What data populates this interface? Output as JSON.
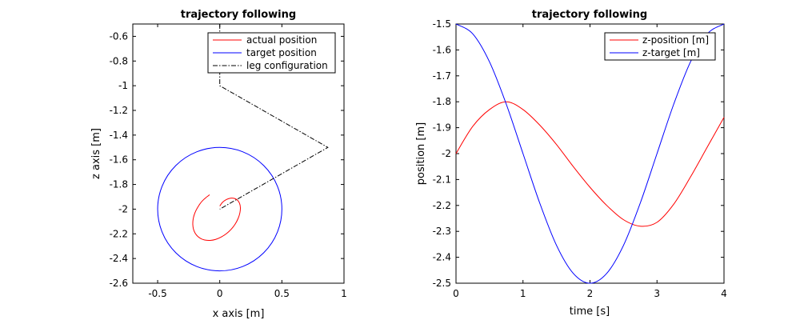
{
  "chart_data": [
    {
      "type": "line",
      "title": "trajectory following",
      "xlabel": "x axis [m]",
      "ylabel": "z axis [m]",
      "xlim": [
        -0.7,
        1
      ],
      "ylim": [
        -2.6,
        -0.5
      ],
      "xticks": [
        "-0.5",
        "0",
        "0.5",
        "1"
      ],
      "yticks": [
        "-0.6",
        "-0.8",
        "-1",
        "-1.2",
        "-1.4",
        "-1.6",
        "-1.8",
        "-2",
        "-2.2",
        "-2.4",
        "-2.6"
      ],
      "legend_position": "top-right",
      "series": [
        {
          "name": "actual position",
          "color": "#ff0000",
          "style": "solid",
          "x": [
            0,
            0.023,
            0.053,
            0.086,
            0.117,
            0.142,
            0.159,
            0.166,
            0.162,
            0.148,
            0.124,
            0.092,
            0.053,
            0.011,
            -0.033,
            -0.076,
            -0.116,
            -0.15,
            -0.178,
            -0.199,
            -0.212,
            -0.217,
            -0.215,
            -0.206,
            -0.191,
            -0.172,
            -0.152,
            -0.131,
            -0.112,
            -0.097,
            -0.087,
            -0.085,
            -0.087
          ],
          "y": [
            -1.975,
            -1.944,
            -1.922,
            -1.911,
            -1.913,
            -1.927,
            -1.952,
            -1.988,
            -2.03,
            -2.075,
            -2.121,
            -2.163,
            -2.199,
            -2.226,
            -2.245,
            -2.253,
            -2.251,
            -2.24,
            -2.22,
            -2.193,
            -2.161,
            -2.125,
            -2.086,
            -2.047,
            -2.01,
            -1.976,
            -1.947,
            -1.924,
            -1.907,
            -1.895,
            -1.888,
            -1.884,
            -1.883
          ]
        },
        {
          "name": "target position",
          "color": "#0000ff",
          "style": "solid",
          "shape": "circle",
          "center": [
            0,
            -2
          ],
          "radius": 0.5
        },
        {
          "name": "leg configuration",
          "color": "#000000",
          "style": "dashdot",
          "x": [
            0,
            0,
            0.87,
            0
          ],
          "y": [
            -0.5,
            -1.0,
            -1.5,
            -2.0
          ]
        }
      ]
    },
    {
      "type": "line",
      "title": "trajectory following",
      "xlabel": "time [s]",
      "ylabel": "position [m]",
      "xlim": [
        0,
        4
      ],
      "ylim": [
        -2.5,
        -1.5
      ],
      "xticks": [
        "0",
        "1",
        "2",
        "3",
        "4"
      ],
      "yticks": [
        "-1.5",
        "-1.6",
        "-1.7",
        "-1.8",
        "-1.9",
        "-2",
        "-2.1",
        "-2.2",
        "-2.3",
        "-2.4",
        "-2.5"
      ],
      "legend_position": "top-right",
      "series": [
        {
          "name": "z-position [m]",
          "color": "#ff0000",
          "style": "solid",
          "x": [
            0,
            0.25,
            0.5,
            0.75,
            1.0,
            1.25,
            1.5,
            1.75,
            2.0,
            2.25,
            2.5,
            2.75,
            3.0,
            3.25,
            3.5,
            3.75,
            4.0
          ],
          "y": [
            -2.0,
            -1.895,
            -1.83,
            -1.8,
            -1.83,
            -1.89,
            -1.965,
            -2.05,
            -2.13,
            -2.2,
            -2.255,
            -2.28,
            -2.265,
            -2.195,
            -2.09,
            -1.975,
            -1.86
          ]
        },
        {
          "name": "z-target [m]",
          "color": "#0000ff",
          "style": "solid",
          "x": [
            0,
            0.25,
            0.5,
            0.75,
            1.0,
            1.25,
            1.5,
            1.75,
            2.0,
            2.25,
            2.5,
            2.75,
            3.0,
            3.25,
            3.5,
            3.75,
            4.0
          ],
          "y": [
            -1.5,
            -1.538,
            -1.646,
            -1.809,
            -2.0,
            -2.191,
            -2.354,
            -2.462,
            -2.5,
            -2.462,
            -2.354,
            -2.191,
            -2.0,
            -1.809,
            -1.646,
            -1.538,
            -1.5
          ]
        }
      ]
    }
  ]
}
